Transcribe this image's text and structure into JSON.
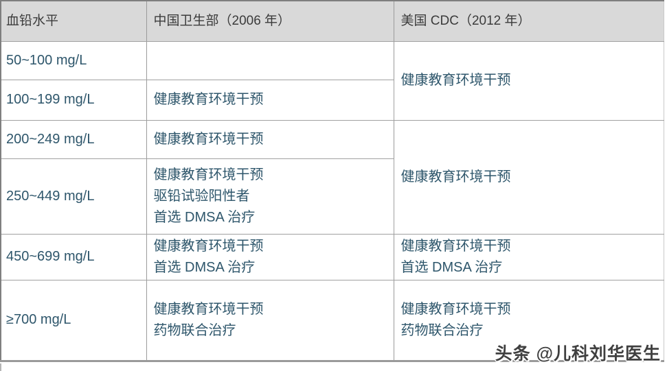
{
  "table": {
    "columns": {
      "level": "血铅水平",
      "china": "中国卫生部（2006 年）",
      "cdc": "美国 CDC（2012 年）"
    },
    "rows": [
      {
        "level": "50~100 mg/L",
        "china": [
          ""
        ],
        "cdc": [
          "健康教育环境干预"
        ]
      },
      {
        "level": "100~199 mg/L",
        "china": [
          "健康教育环境干预"
        ]
      },
      {
        "level": "200~249 mg/L",
        "china": [
          "健康教育环境干预"
        ],
        "cdc": [
          "健康教育环境干预"
        ]
      },
      {
        "level": "250~449 mg/L",
        "china": [
          "健康教育环境干预",
          "驱铅试验阳性者",
          "首选 DMSA 治疗"
        ]
      },
      {
        "level": "450~699 mg/L",
        "china": [
          "健康教育环境干预",
          "首选 DMSA 治疗"
        ],
        "cdc": [
          "健康教育环境干预",
          "首选 DMSA 治疗"
        ]
      },
      {
        "level": "≥700 mg/L",
        "china": [
          "健康教育环境干预",
          "药物联合治疗"
        ],
        "cdc": [
          "健康教育环境干预",
          "药物联合治疗"
        ]
      }
    ]
  },
  "watermark": "头条 @儿科刘华医生",
  "colors": {
    "header_bg": "#d9d9d9",
    "border": "#a0a0a0",
    "outer_border": "#7f7f7f",
    "body_text": "#2e566b",
    "header_text": "#3b3b3b",
    "watermark_text": "#3f3f3f"
  },
  "chart_data": {
    "type": "table",
    "title": "",
    "columns": [
      "血铅水平",
      "中国卫生部（2006 年）",
      "美国 CDC（2012 年）"
    ],
    "cells": [
      [
        "50~100 mg/L",
        "",
        "健康教育环境干预"
      ],
      [
        "100~199 mg/L",
        "健康教育环境干预",
        "健康教育环境干预"
      ],
      [
        "200~249 mg/L",
        "健康教育环境干预",
        "健康教育环境干预"
      ],
      [
        "250~449 mg/L",
        "健康教育环境干预 驱铅试验阳性者 首选 DMSA 治疗",
        "健康教育环境干预"
      ],
      [
        "450~699 mg/L",
        "健康教育环境干预 首选 DMSA 治疗",
        "健康教育环境干预 首选 DMSA 治疗"
      ],
      [
        "≥700 mg/L",
        "健康教育环境干预 药物联合治疗",
        "健康教育环境干预 药物联合治疗"
      ]
    ]
  }
}
